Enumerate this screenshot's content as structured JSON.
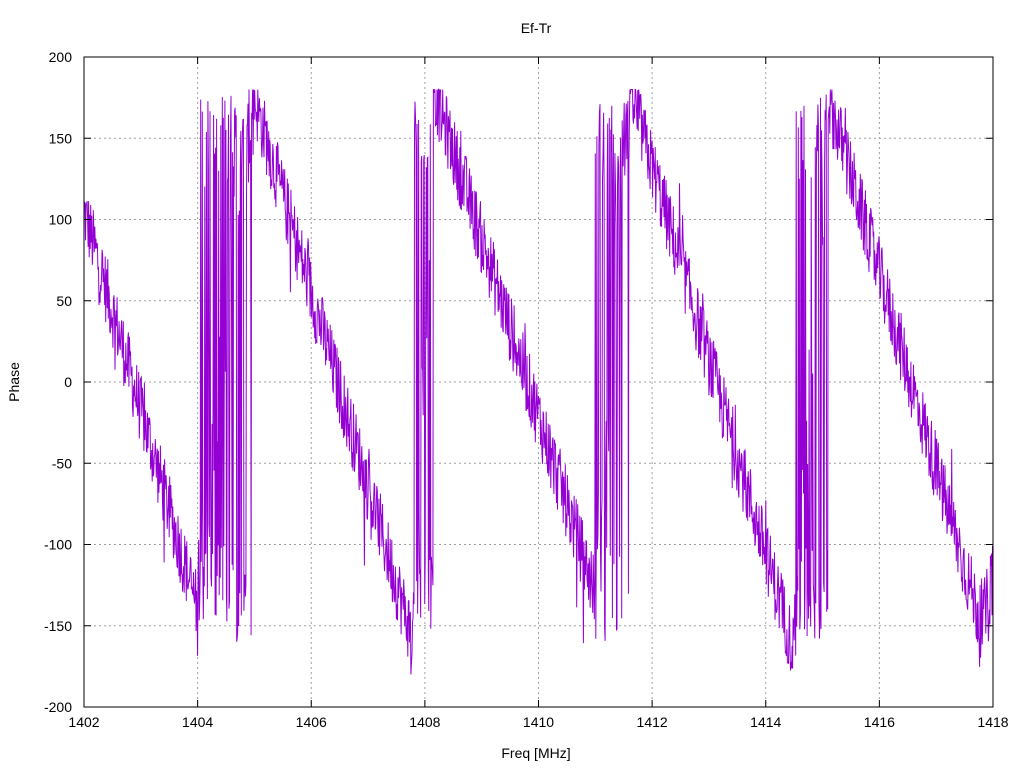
{
  "chart_data": {
    "type": "line",
    "title": "Ef-Tr",
    "xlabel": "Freq [MHz]",
    "ylabel": "Phase",
    "xlim": [
      1402,
      1418
    ],
    "ylim": [
      -200,
      200
    ],
    "xticks": [
      1402,
      1404,
      1406,
      1408,
      1410,
      1412,
      1414,
      1416,
      1418
    ],
    "yticks": [
      -200,
      -150,
      -100,
      -50,
      0,
      50,
      100,
      150,
      200
    ],
    "grid": true,
    "line_color": "#9400d3",
    "noise_amplitude": 22,
    "series": [
      {
        "trend_segments": [
          {
            "x": [
              1402.0,
              1404.0
            ],
            "y": [
              105,
              -140
            ]
          },
          {
            "x": [
              1404.0,
              1404.95
            ],
            "y": [
              -140,
              180
            ],
            "wrap_region": true
          },
          {
            "x": [
              1404.95,
              1407.8
            ],
            "y": [
              180,
              -160
            ]
          },
          {
            "x": [
              1407.8,
              1408.15
            ],
            "y": [
              -160,
              180
            ],
            "wrap_region": true
          },
          {
            "x": [
              1408.15,
              1411.0
            ],
            "y": [
              180,
              -130
            ]
          },
          {
            "x": [
              1411.0,
              1411.6
            ],
            "y": [
              -130,
              180
            ],
            "wrap_region": true
          },
          {
            "x": [
              1411.6,
              1414.5
            ],
            "y": [
              180,
              -165
            ]
          },
          {
            "x": [
              1414.5,
              1415.1
            ],
            "y": [
              -165,
              175
            ],
            "wrap_region": true
          },
          {
            "x": [
              1415.1,
              1417.8
            ],
            "y": [
              175,
              -150
            ]
          },
          {
            "x": [
              1417.8,
              1418.0
            ],
            "y": [
              -150,
              -120
            ]
          }
        ]
      }
    ]
  }
}
